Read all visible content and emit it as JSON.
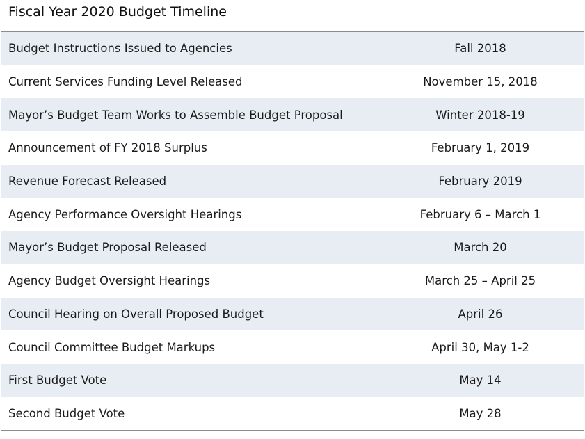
{
  "title": "Fiscal Year 2020 Budget Timeline",
  "colors": {
    "shaded_row": "#e8edf4",
    "rule": "#8c8c8c"
  },
  "rows": [
    {
      "event": "Budget Instructions Issued to Agencies",
      "date": "Fall 2018"
    },
    {
      "event": "Current Services Funding Level Released",
      "date": "November 15, 2018"
    },
    {
      "event": "Mayor’s Budget Team Works to Assemble Budget Proposal",
      "date": "Winter 2018-19"
    },
    {
      "event": "Announcement of FY 2018 Surplus",
      "date": "February 1, 2019"
    },
    {
      "event": "Revenue Forecast Released",
      "date": "February 2019"
    },
    {
      "event": "Agency Performance Oversight Hearings",
      "date": "February 6 – March 1"
    },
    {
      "event": "Mayor’s Budget Proposal Released",
      "date": "March 20"
    },
    {
      "event": "Agency Budget Oversight Hearings",
      "date": "March 25 – April 25"
    },
    {
      "event": "Council Hearing on Overall Proposed Budget",
      "date": "April 26"
    },
    {
      "event": "Council Committee Budget Markups",
      "date": "April 30, May 1-2"
    },
    {
      "event": "First Budget Vote",
      "date": "May 14"
    },
    {
      "event": "Second Budget Vote",
      "date": "May 28"
    }
  ]
}
